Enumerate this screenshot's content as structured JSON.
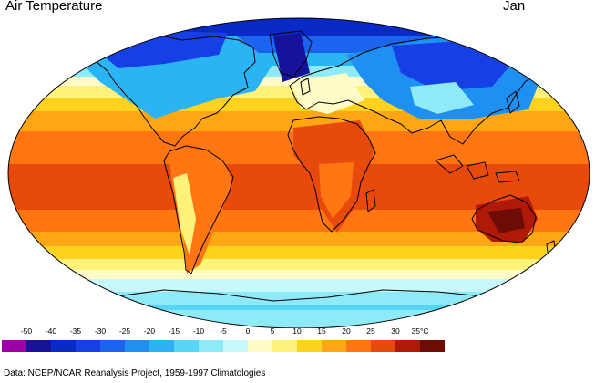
{
  "header": {
    "title": "Air Temperature",
    "month": "Jan"
  },
  "legend": {
    "labels": [
      "-50",
      "-40",
      "-35",
      "-30",
      "-25",
      "-20",
      "-15",
      "-10",
      "-5",
      "0",
      "5",
      "10",
      "15",
      "20",
      "25",
      "30",
      "35°C"
    ],
    "colors": [
      "#a000a8",
      "#16129c",
      "#0a2ac8",
      "#1640e6",
      "#1a64f0",
      "#1e90f2",
      "#2ab4f4",
      "#56d6f6",
      "#8eeaf6",
      "#c8f8fa",
      "#fffcc8",
      "#fff27a",
      "#ffd21e",
      "#ffa614",
      "#ff7612",
      "#e84a0c",
      "#b01808",
      "#6c0c04"
    ]
  },
  "source": "Data:  NCEP/NCAR Reanalysis Project, 1959-1997 Climatologies"
}
